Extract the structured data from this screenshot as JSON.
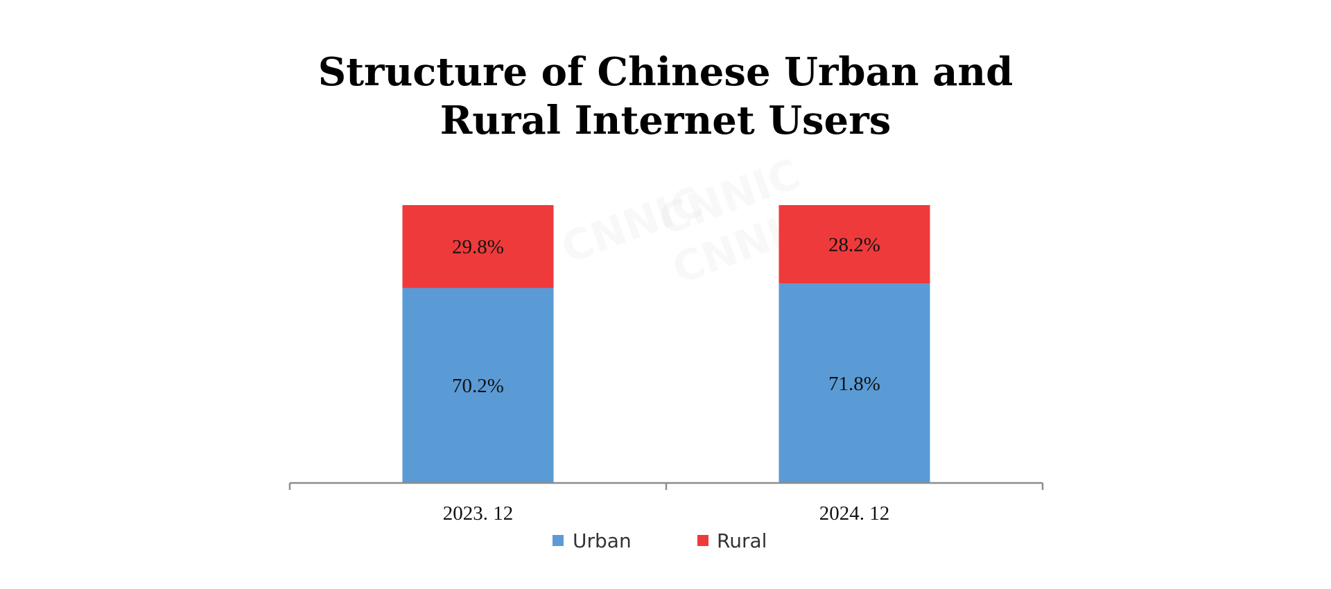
{
  "chart_data": {
    "type": "bar",
    "stacked": true,
    "title_lines": [
      "Structure of Chinese Urban and",
      "Rural Internet Users"
    ],
    "categories": [
      "2023. 12",
      "2024. 12"
    ],
    "series": [
      {
        "name": "Urban",
        "values": [
          70.2,
          71.8
        ],
        "labels": [
          "70.2%",
          "71.8%"
        ],
        "color": "#5b9bd5"
      },
      {
        "name": "Rural",
        "values": [
          29.8,
          28.2
        ],
        "labels": [
          "29.8%",
          "28.2%"
        ],
        "color": "#ef3a3b"
      }
    ],
    "ylim": [
      0,
      100
    ],
    "grid": false,
    "legend_position": "bottom"
  }
}
